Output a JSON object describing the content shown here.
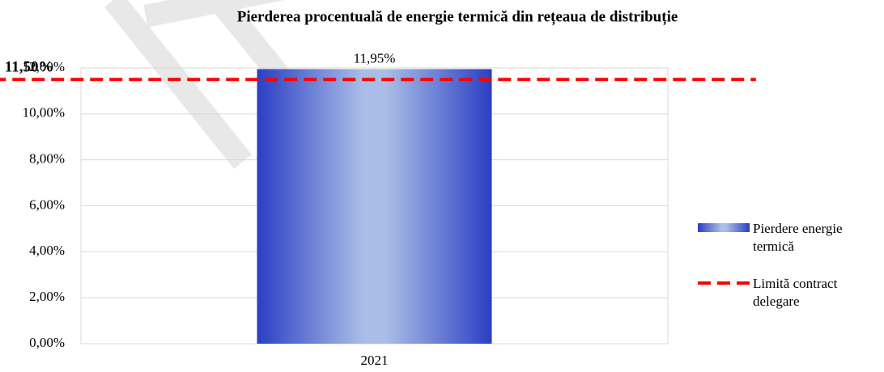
{
  "chart_data": {
    "type": "bar",
    "title": "Pierderea procentuală de energie termică din rețeaua de distribuție",
    "categories": [
      "2021"
    ],
    "series": [
      {
        "name": "Pierdere energie termică",
        "color": "#2b3fc4",
        "values": [
          11.95
        ],
        "value_labels": [
          "11,95%"
        ]
      },
      {
        "name": "Limită contract delegare",
        "color": "#ff0000",
        "type": "line",
        "values": [
          11.5
        ],
        "value_labels": [
          "11,50%"
        ]
      }
    ],
    "ylim": [
      0,
      12
    ],
    "yticks": [
      {
        "value": 0,
        "label": "0,00%"
      },
      {
        "value": 2,
        "label": "2,00%"
      },
      {
        "value": 4,
        "label": "4,00%"
      },
      {
        "value": 6,
        "label": "6,00%"
      },
      {
        "value": 8,
        "label": "8,00%"
      },
      {
        "value": 10,
        "label": "10,00%"
      },
      {
        "value": 12,
        "label": "12,00%"
      }
    ],
    "grid": true,
    "legend": "right"
  }
}
